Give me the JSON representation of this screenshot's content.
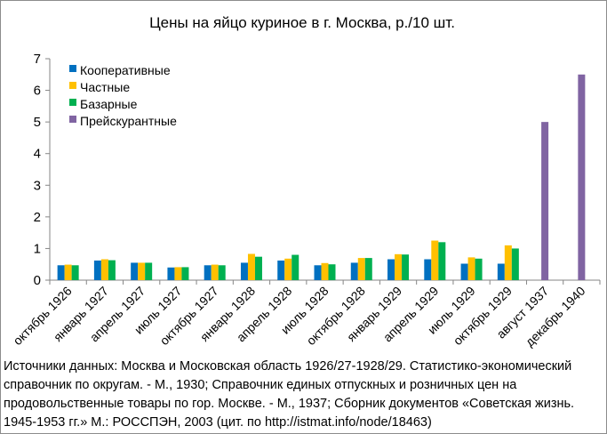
{
  "chart_data": {
    "type": "bar",
    "title": "Цены на яйцо куриное в г. Москва, р./10 шт.",
    "xlabel": "",
    "ylabel": "",
    "ylim": [
      0,
      7
    ],
    "yticks": [
      0,
      1,
      2,
      3,
      4,
      5,
      6,
      7
    ],
    "grid": false,
    "legend_position": "top-left",
    "categories": [
      "октябрь 1926",
      "январь 1927",
      "апрель 1927",
      "июль 1927",
      "октябрь 1927",
      "январь 1928",
      "апрель 1928",
      "июль 1928",
      "октябрь 1928",
      "январь 1929",
      "апрель 1929",
      "июль 1929",
      "октябрь 1929",
      "август 1937",
      "декабрь 1940"
    ],
    "series": [
      {
        "name": "Кооперативные",
        "color": "#0070c0",
        "values": [
          0.47,
          0.62,
          0.55,
          0.4,
          0.47,
          0.55,
          0.62,
          0.47,
          0.55,
          0.66,
          0.66,
          0.52,
          0.52,
          null,
          null
        ]
      },
      {
        "name": "Частные",
        "color": "#ffc000",
        "values": [
          0.49,
          0.66,
          0.55,
          0.41,
          0.49,
          0.83,
          0.68,
          0.54,
          0.7,
          0.82,
          1.25,
          0.72,
          1.1,
          null,
          null
        ]
      },
      {
        "name": "Базарные",
        "color": "#00b050",
        "values": [
          0.47,
          0.63,
          0.55,
          0.41,
          0.47,
          0.74,
          0.8,
          0.5,
          0.7,
          0.81,
          1.2,
          0.68,
          1.0,
          null,
          null
        ]
      },
      {
        "name": "Прейскурантные",
        "color": "#8064a2",
        "values": [
          null,
          null,
          null,
          null,
          null,
          null,
          null,
          null,
          null,
          null,
          null,
          null,
          null,
          5.0,
          6.5
        ]
      }
    ]
  },
  "source_note": "Источники данных:  Москва и Московская область 1926/27-1928/29. Статистико-экономический справочник по округам. - М., 1930; Справочник единых отпускных и розничных цен на продовольственные товары по гор. Москве. - М., 1937; Сборник документов «Советская жизнь. 1945-1953  гг.» М.: РОССПЭН, 2003 (цит. по http://istmat.info/node/18463)"
}
